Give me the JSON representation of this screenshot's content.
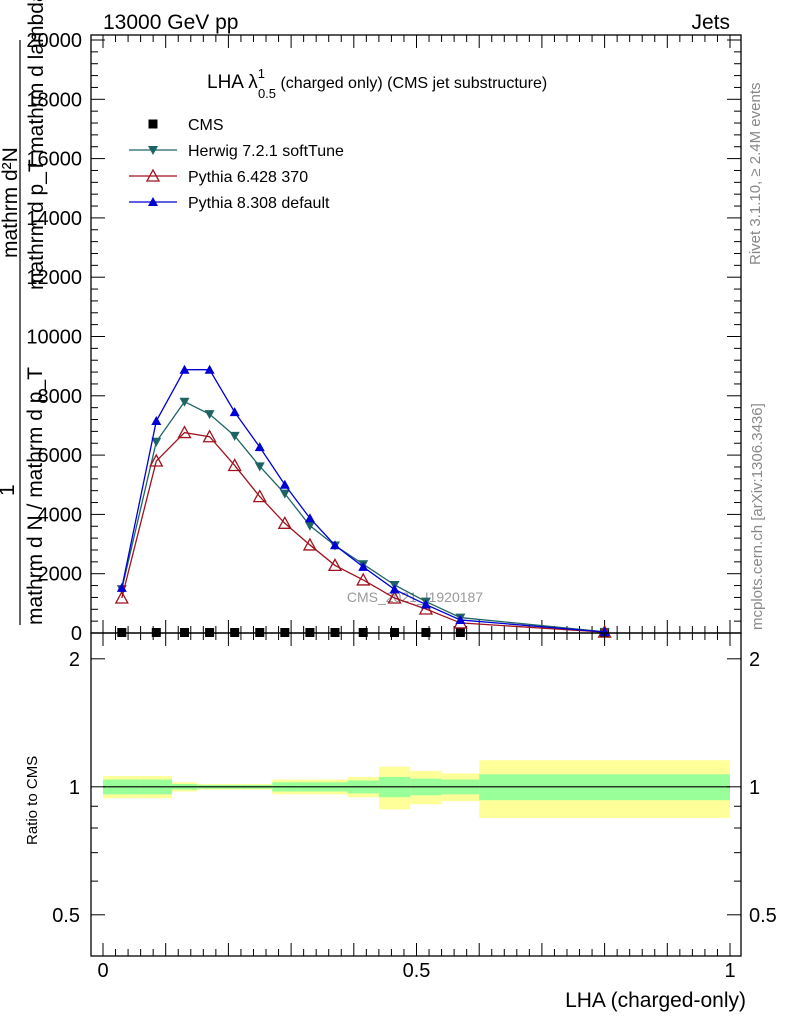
{
  "header": {
    "energy_label": "13000 GeV pp",
    "process_label": "Jets"
  },
  "side_labels": {
    "rivet": "Rivet 3.1.10, ≥ 2.4M events",
    "mcplots": "mcplots.cern.ch [arXiv:1306.3436]"
  },
  "watermark": "CMS_2021_I1920187",
  "colors": {
    "cms": "#000000",
    "herwig": "#1f6464",
    "pythia6": "#a0121e",
    "pythia8": "#0000d4",
    "band_inner": "#99ff99",
    "band_outer": "#ffff99"
  },
  "chart_data": [
    {
      "type": "line",
      "panel": "main",
      "title": "LHA λ",
      "title_sup": "1",
      "title_sub": "0.5",
      "title_suffix": " (charged only) (CMS jet substructure)",
      "ylabel_line1": "mathrm d²N",
      "ylabel_line2": "mathrm d p_T mathrm d lambda",
      "ylabel_frac_top": "1",
      "ylabel_frac_bottom": "mathrm d N / mathrm d p_T",
      "xlim": [
        0,
        1
      ],
      "ylim": [
        0,
        20000
      ],
      "yticks": [
        0,
        2000,
        4000,
        6000,
        8000,
        10000,
        12000,
        14000,
        16000,
        18000,
        20000
      ],
      "ytick_labels": [
        "0",
        "2000",
        "4000",
        "6000",
        "8000",
        "10000",
        "12000",
        "14000",
        "16000",
        "18000",
        "20000"
      ],
      "legend_position": "top-left",
      "x": [
        0.03,
        0.085,
        0.13,
        0.17,
        0.21,
        0.25,
        0.29,
        0.33,
        0.37,
        0.415,
        0.465,
        0.515,
        0.57,
        0.8
      ],
      "series": [
        {
          "name": "CMS",
          "marker": "square",
          "color_key": "cms",
          "values": [
            30,
            30,
            30,
            30,
            30,
            30,
            30,
            30,
            30,
            30,
            30,
            30,
            30,
            30
          ]
        },
        {
          "name": "Herwig 7.2.1 softTune",
          "marker": "triangle-down",
          "color_key": "herwig",
          "values": [
            1480,
            6450,
            7800,
            7380,
            6650,
            5620,
            4700,
            3620,
            2950,
            2320,
            1620,
            1060,
            520,
            40
          ]
        },
        {
          "name": "Pythia 6.428 370",
          "marker": "triangle-up-open",
          "color_key": "pythia6",
          "values": [
            1180,
            5800,
            6760,
            6620,
            5650,
            4600,
            3700,
            2970,
            2280,
            1790,
            1180,
            810,
            340,
            30
          ]
        },
        {
          "name": "Pythia 8.308 default",
          "marker": "triangle-up",
          "color_key": "pythia8",
          "values": [
            1520,
            7150,
            8880,
            8880,
            7450,
            6270,
            5000,
            3870,
            2960,
            2230,
            1470,
            960,
            440,
            35
          ]
        }
      ]
    },
    {
      "type": "area",
      "panel": "ratio",
      "ylabel": "Ratio to CMS",
      "xlabel": "LHA (charged-only)",
      "xlim": [
        0,
        1
      ],
      "ylim": [
        0.4,
        2.3
      ],
      "log_y": true,
      "yticks": [
        0.5,
        1,
        2
      ],
      "ytick_labels": [
        "0.5",
        "1",
        "2"
      ],
      "xticks": [
        0,
        0.5,
        1
      ],
      "xtick_labels": [
        "0",
        "0.5",
        "1"
      ],
      "bins": [
        {
          "lo": 0.0,
          "hi": 0.06,
          "stat": [
            0.96,
            1.04
          ],
          "total": [
            0.94,
            1.06
          ]
        },
        {
          "lo": 0.06,
          "hi": 0.11,
          "stat": [
            0.96,
            1.04
          ],
          "total": [
            0.94,
            1.06
          ]
        },
        {
          "lo": 0.11,
          "hi": 0.15,
          "stat": [
            0.985,
            1.015
          ],
          "total": [
            0.975,
            1.025
          ]
        },
        {
          "lo": 0.15,
          "hi": 0.19,
          "stat": [
            0.99,
            1.01
          ],
          "total": [
            0.985,
            1.015
          ]
        },
        {
          "lo": 0.19,
          "hi": 0.23,
          "stat": [
            0.99,
            1.01
          ],
          "total": [
            0.985,
            1.015
          ]
        },
        {
          "lo": 0.23,
          "hi": 0.27,
          "stat": [
            0.99,
            1.01
          ],
          "total": [
            0.985,
            1.015
          ]
        },
        {
          "lo": 0.27,
          "hi": 0.31,
          "stat": [
            0.975,
            1.025
          ],
          "total": [
            0.96,
            1.04
          ]
        },
        {
          "lo": 0.31,
          "hi": 0.35,
          "stat": [
            0.975,
            1.025
          ],
          "total": [
            0.96,
            1.04
          ]
        },
        {
          "lo": 0.35,
          "hi": 0.39,
          "stat": [
            0.975,
            1.025
          ],
          "total": [
            0.96,
            1.04
          ]
        },
        {
          "lo": 0.39,
          "hi": 0.44,
          "stat": [
            0.965,
            1.035
          ],
          "total": [
            0.945,
            1.055
          ]
        },
        {
          "lo": 0.44,
          "hi": 0.49,
          "stat": [
            0.945,
            1.055
          ],
          "total": [
            0.885,
            1.115
          ]
        },
        {
          "lo": 0.49,
          "hi": 0.54,
          "stat": [
            0.955,
            1.045
          ],
          "total": [
            0.91,
            1.09
          ]
        },
        {
          "lo": 0.54,
          "hi": 0.6,
          "stat": [
            0.96,
            1.04
          ],
          "total": [
            0.925,
            1.075
          ]
        },
        {
          "lo": 0.6,
          "hi": 1.0,
          "stat": [
            0.93,
            1.07
          ],
          "total": [
            0.845,
            1.155
          ]
        }
      ]
    }
  ]
}
